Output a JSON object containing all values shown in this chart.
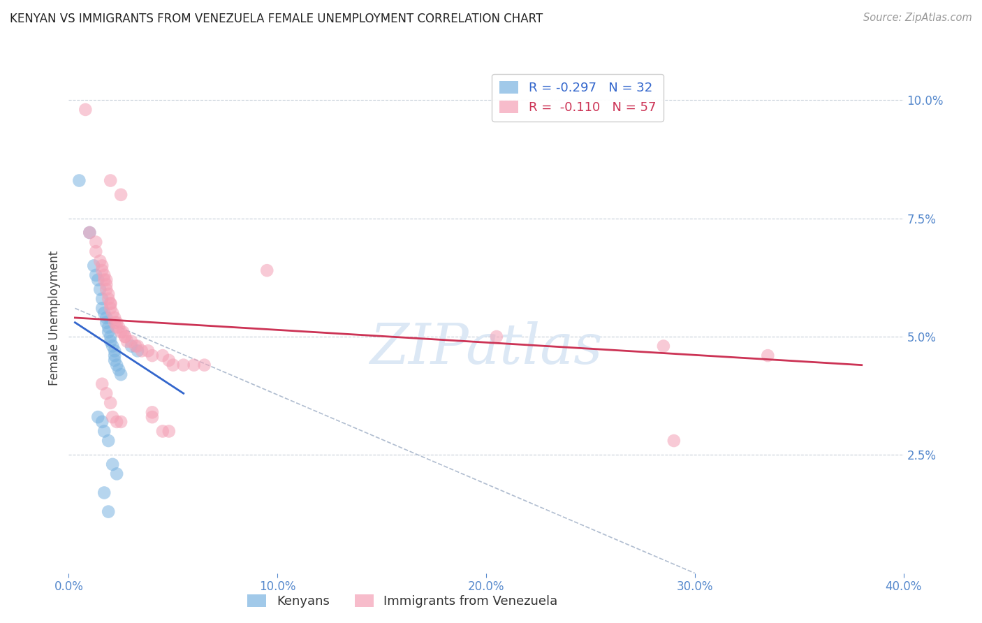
{
  "title": "KENYAN VS IMMIGRANTS FROM VENEZUELA FEMALE UNEMPLOYMENT CORRELATION CHART",
  "source": "Source: ZipAtlas.com",
  "ylabel": "Female Unemployment",
  "ytick_values": [
    0.025,
    0.05,
    0.075,
    0.1
  ],
  "xlim": [
    0.0,
    0.4
  ],
  "ylim": [
    0.0,
    0.108
  ],
  "kenyan_color": "#7ab3e0",
  "venezuela_color": "#f4a0b5",
  "kenyan_line_color": "#3366cc",
  "venezuela_line_color": "#cc3355",
  "dashed_line_color": "#b0bdd0",
  "watermark_color": "#dce8f5",
  "background_color": "#ffffff",
  "kenyan_points": [
    [
      0.005,
      0.083
    ],
    [
      0.01,
      0.072
    ],
    [
      0.012,
      0.065
    ],
    [
      0.013,
      0.063
    ],
    [
      0.014,
      0.062
    ],
    [
      0.015,
      0.06
    ],
    [
      0.016,
      0.058
    ],
    [
      0.016,
      0.056
    ],
    [
      0.017,
      0.055
    ],
    [
      0.018,
      0.054
    ],
    [
      0.018,
      0.053
    ],
    [
      0.019,
      0.052
    ],
    [
      0.019,
      0.051
    ],
    [
      0.02,
      0.05
    ],
    [
      0.02,
      0.049
    ],
    [
      0.021,
      0.048
    ],
    [
      0.022,
      0.047
    ],
    [
      0.022,
      0.046
    ],
    [
      0.022,
      0.045
    ],
    [
      0.023,
      0.044
    ],
    [
      0.024,
      0.043
    ],
    [
      0.025,
      0.042
    ],
    [
      0.03,
      0.048
    ],
    [
      0.033,
      0.047
    ],
    [
      0.014,
      0.033
    ],
    [
      0.016,
      0.032
    ],
    [
      0.017,
      0.03
    ],
    [
      0.019,
      0.028
    ],
    [
      0.021,
      0.023
    ],
    [
      0.023,
      0.021
    ],
    [
      0.017,
      0.017
    ],
    [
      0.019,
      0.013
    ]
  ],
  "venezuela_points": [
    [
      0.008,
      0.098
    ],
    [
      0.02,
      0.083
    ],
    [
      0.025,
      0.08
    ],
    [
      0.01,
      0.072
    ],
    [
      0.013,
      0.07
    ],
    [
      0.013,
      0.068
    ],
    [
      0.015,
      0.066
    ],
    [
      0.016,
      0.065
    ],
    [
      0.016,
      0.064
    ],
    [
      0.017,
      0.063
    ],
    [
      0.017,
      0.062
    ],
    [
      0.018,
      0.062
    ],
    [
      0.018,
      0.061
    ],
    [
      0.018,
      0.06
    ],
    [
      0.019,
      0.059
    ],
    [
      0.019,
      0.058
    ],
    [
      0.02,
      0.057
    ],
    [
      0.02,
      0.057
    ],
    [
      0.02,
      0.056
    ],
    [
      0.021,
      0.055
    ],
    [
      0.022,
      0.054
    ],
    [
      0.022,
      0.053
    ],
    [
      0.023,
      0.053
    ],
    [
      0.023,
      0.052
    ],
    [
      0.024,
      0.052
    ],
    [
      0.025,
      0.051
    ],
    [
      0.026,
      0.051
    ],
    [
      0.027,
      0.05
    ],
    [
      0.027,
      0.05
    ],
    [
      0.028,
      0.049
    ],
    [
      0.03,
      0.049
    ],
    [
      0.032,
      0.048
    ],
    [
      0.033,
      0.048
    ],
    [
      0.035,
      0.047
    ],
    [
      0.038,
      0.047
    ],
    [
      0.04,
      0.046
    ],
    [
      0.045,
      0.046
    ],
    [
      0.048,
      0.045
    ],
    [
      0.05,
      0.044
    ],
    [
      0.055,
      0.044
    ],
    [
      0.06,
      0.044
    ],
    [
      0.065,
      0.044
    ],
    [
      0.016,
      0.04
    ],
    [
      0.018,
      0.038
    ],
    [
      0.02,
      0.036
    ],
    [
      0.021,
      0.033
    ],
    [
      0.023,
      0.032
    ],
    [
      0.025,
      0.032
    ],
    [
      0.04,
      0.034
    ],
    [
      0.04,
      0.033
    ],
    [
      0.045,
      0.03
    ],
    [
      0.048,
      0.03
    ],
    [
      0.095,
      0.064
    ],
    [
      0.205,
      0.05
    ],
    [
      0.285,
      0.048
    ],
    [
      0.335,
      0.046
    ],
    [
      0.29,
      0.028
    ]
  ],
  "kenyan_line": {
    "x0": 0.003,
    "y0": 0.053,
    "x1": 0.055,
    "y1": 0.038
  },
  "venezuela_line": {
    "x0": 0.003,
    "y0": 0.054,
    "x1": 0.38,
    "y1": 0.044
  },
  "dashed_line": {
    "x0": 0.003,
    "y0": 0.056,
    "x1": 0.3,
    "y1": 0.0
  },
  "legend_label1": "R = -0.297   N = 32",
  "legend_label2": "R =  -0.110   N = 57",
  "bottom_label1": "Kenyans",
  "bottom_label2": "Immigrants from Venezuela"
}
